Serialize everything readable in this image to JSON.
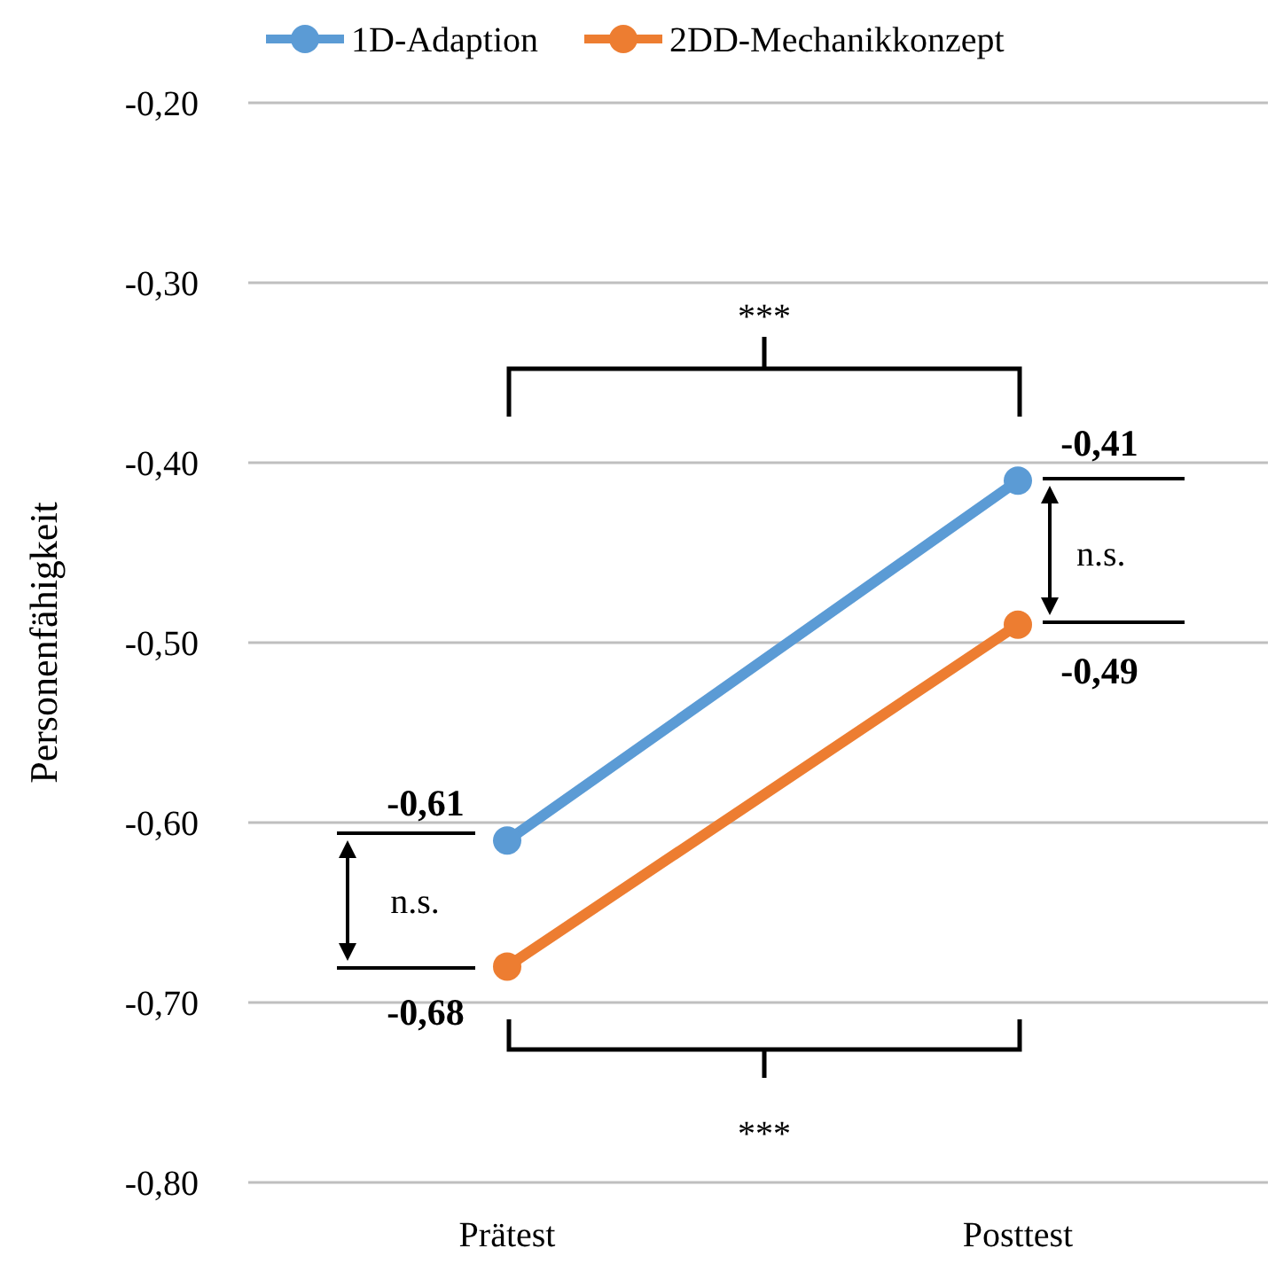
{
  "chart_data": {
    "type": "line",
    "ylabel": "Personenfähigkeit",
    "categories": [
      "Prätest",
      "Posttest"
    ],
    "series": [
      {
        "name": "1D-Adaption",
        "color": "#5b9bd5",
        "values": [
          -0.61,
          -0.41
        ],
        "value_labels": [
          "-0,61",
          "-0,41"
        ]
      },
      {
        "name": "2DD-Mechanikkonzept",
        "color": "#ed7d31",
        "values": [
          -0.68,
          -0.49
        ],
        "value_labels": [
          "-0,68",
          "-0,49"
        ]
      }
    ],
    "ylim": [
      -0.8,
      -0.2
    ],
    "yticks": [
      {
        "value": -0.8,
        "label": "-0,80"
      },
      {
        "value": -0.7,
        "label": "-0,70"
      },
      {
        "value": -0.6,
        "label": "-0,60"
      },
      {
        "value": -0.5,
        "label": "-0,50"
      },
      {
        "value": -0.4,
        "label": "-0,40"
      },
      {
        "value": -0.3,
        "label": "-0,30"
      },
      {
        "value": -0.2,
        "label": "-0,20"
      }
    ],
    "grid": "y",
    "legend": "top",
    "marker": "circle",
    "line_style": "solid",
    "annotations": [
      "***",
      "n.s.",
      "n.s.",
      "***"
    ]
  }
}
